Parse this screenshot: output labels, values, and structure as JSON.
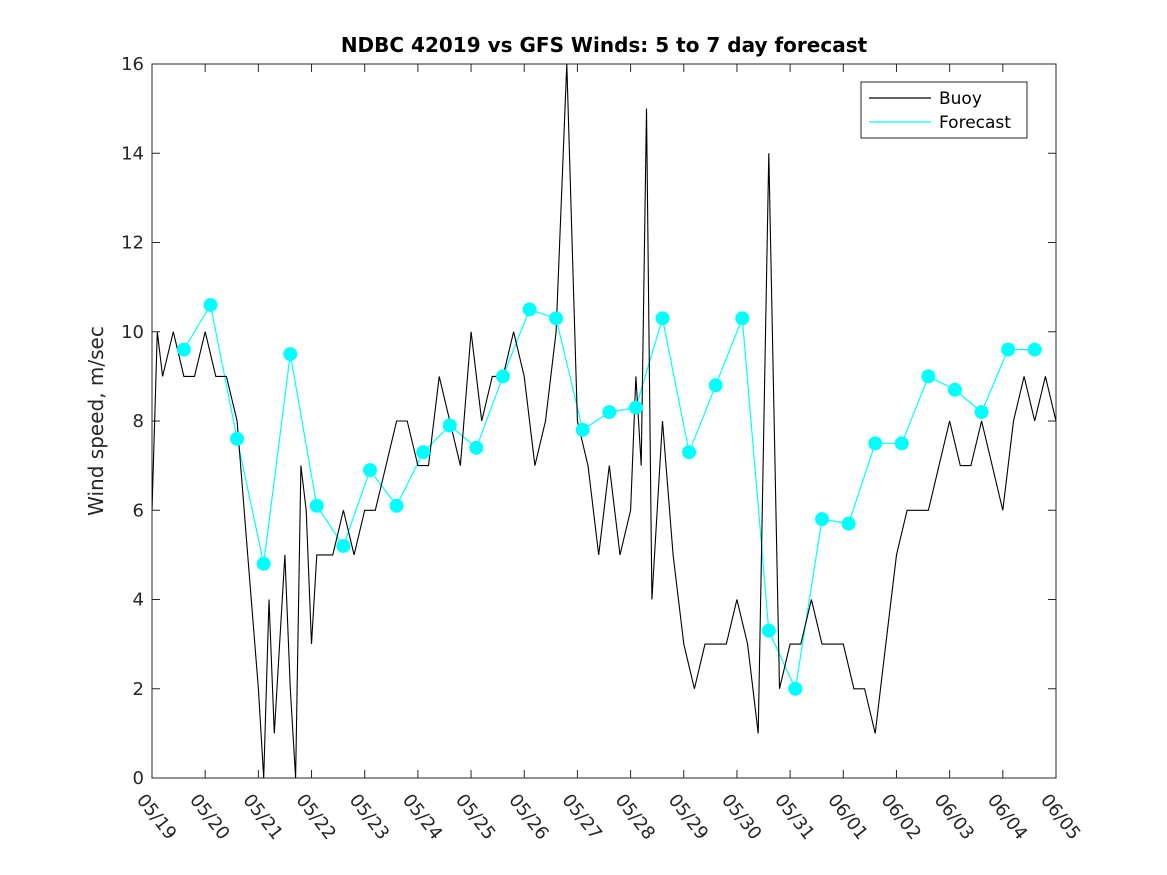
{
  "chart_data": {
    "type": "line",
    "title": "NDBC 42019 vs GFS Winds: 5 to 7 day forecast",
    "xlabel": "",
    "ylabel": "Wind speed, m/sec",
    "ylim": [
      0,
      16
    ],
    "yticks": [
      "0",
      "2",
      "4",
      "6",
      "8",
      "10",
      "12",
      "14",
      "16"
    ],
    "xlim": [
      "05/19",
      "06/05"
    ],
    "xticks": [
      "05/19",
      "05/20",
      "05/21",
      "05/22",
      "05/23",
      "05/24",
      "05/25",
      "05/26",
      "05/27",
      "05/28",
      "05/29",
      "05/30",
      "05/31",
      "06/01",
      "06/02",
      "06/03",
      "06/04",
      "06/05"
    ],
    "grid": false,
    "legend_position": "top-right",
    "colors": {
      "buoy": "#000000",
      "forecast": "#00ffff"
    },
    "series": [
      {
        "name": "Buoy",
        "x_day_since_0519": [
          0.0,
          0.1,
          0.2,
          0.4,
          0.6,
          0.8,
          1.0,
          1.2,
          1.4,
          1.6,
          1.8,
          2.0,
          2.1,
          2.2,
          2.3,
          2.4,
          2.5,
          2.6,
          2.7,
          2.8,
          2.9,
          3.0,
          3.1,
          3.2,
          3.4,
          3.6,
          3.8,
          4.0,
          4.2,
          4.4,
          4.6,
          4.8,
          5.0,
          5.2,
          5.4,
          5.6,
          5.8,
          6.0,
          6.2,
          6.4,
          6.6,
          6.8,
          7.0,
          7.2,
          7.4,
          7.6,
          7.8,
          8.0,
          8.2,
          8.4,
          8.6,
          8.8,
          9.0,
          9.1,
          9.2,
          9.3,
          9.4,
          9.6,
          9.8,
          10.0,
          10.2,
          10.4,
          10.6,
          10.8,
          11.0,
          11.2,
          11.4,
          11.6,
          11.8,
          12.0,
          12.2,
          12.4,
          12.6,
          12.8,
          13.0,
          13.2,
          13.4,
          13.6,
          13.8,
          14.0,
          14.2,
          14.4,
          14.6,
          14.8,
          15.0,
          15.2,
          15.4,
          15.6,
          15.8,
          16.0,
          16.2,
          16.4,
          16.6,
          16.8,
          17.0
        ],
        "values": [
          6,
          10,
          9,
          10,
          9,
          9,
          10,
          9,
          9,
          8,
          5,
          2,
          0,
          4,
          1,
          3,
          5,
          2,
          0,
          7,
          6,
          3,
          5,
          5,
          5,
          6,
          5,
          6,
          6,
          7,
          8,
          8,
          7,
          7,
          9,
          8,
          7,
          10,
          8,
          9,
          9,
          10,
          9,
          7,
          8,
          10,
          16,
          8,
          7,
          5,
          7,
          5,
          6,
          9,
          7,
          15,
          4,
          8,
          5,
          3,
          2,
          3,
          3,
          3,
          4,
          3,
          1,
          14,
          2,
          3,
          3,
          4,
          3,
          3,
          3,
          2,
          2,
          1,
          3,
          5,
          6,
          6,
          6,
          7,
          8,
          7,
          7,
          8,
          7,
          6,
          8,
          9,
          8,
          9,
          8
        ]
      },
      {
        "name": "Forecast",
        "x_day_since_0519": [
          0.6,
          1.1,
          1.6,
          2.1,
          2.6,
          3.1,
          3.6,
          4.1,
          4.6,
          5.1,
          5.6,
          6.1,
          6.6,
          7.1,
          7.6,
          8.1,
          8.6,
          9.1,
          9.6,
          10.1,
          10.6,
          11.1,
          11.6,
          12.1,
          12.6,
          13.1,
          13.6,
          14.1,
          14.6,
          15.1,
          15.6,
          16.1,
          16.6
        ],
        "values": [
          9.6,
          10.6,
          7.6,
          4.8,
          9.5,
          6.1,
          5.2,
          6.9,
          6.1,
          7.3,
          7.9,
          7.4,
          9.0,
          10.5,
          10.3,
          7.8,
          8.2,
          8.3,
          10.3,
          7.3,
          8.8,
          10.3,
          3.3,
          2.0,
          5.8,
          5.7,
          7.5,
          7.5,
          9.0,
          8.7,
          8.2,
          9.6,
          9.6
        ]
      }
    ],
    "forecast_markers_x": [
      0.6,
      1.1,
      1.6,
      2.1,
      2.6,
      3.1,
      3.6,
      4.1,
      4.6,
      5.1,
      5.6,
      6.1,
      6.6,
      7.1,
      7.6,
      8.1,
      8.6,
      9.1,
      9.6,
      10.1,
      10.6,
      11.1,
      11.6,
      12.1,
      12.6,
      13.1,
      13.6,
      14.1,
      14.6,
      15.1,
      15.6,
      16.1,
      16.6
    ],
    "forecast_markers_y": [
      9.6,
      10.6,
      7.6,
      4.8,
      9.5,
      6.1,
      5.2,
      6.9,
      6.1,
      7.3,
      7.9,
      7.4,
      9.0,
      10.5,
      10.3,
      7.8,
      8.2,
      8.3,
      10.3,
      7.3,
      8.8,
      10.3,
      3.3,
      2.0,
      5.8,
      5.7,
      7.5,
      7.5,
      9.0,
      8.7,
      8.2,
      9.6,
      9.6
    ],
    "legend": [
      {
        "label": "Buoy",
        "color": "#000000"
      },
      {
        "label": "Forecast",
        "color": "#00ffff"
      }
    ]
  }
}
